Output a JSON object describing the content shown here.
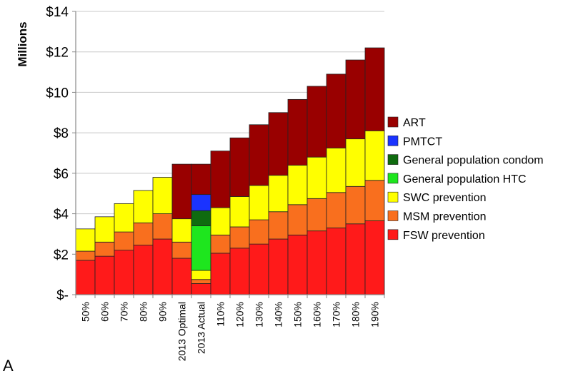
{
  "panel_label": "A",
  "chart_data": {
    "type": "bar",
    "stacked": true,
    "ylabel": "Millions",
    "ylim": [
      0,
      14
    ],
    "yticks": [
      0,
      2,
      4,
      6,
      8,
      10,
      12,
      14
    ],
    "ytick_labels": [
      "$-",
      "$2",
      "$4",
      "$6",
      "$8",
      "$10",
      "$12",
      "$14"
    ],
    "grid": true,
    "legend_position": "right",
    "categories": [
      "50%",
      "60%",
      "70%",
      "80%",
      "90%",
      "2013 Optimal",
      "2013 Actual",
      "110%",
      "120%",
      "130%",
      "140%",
      "150%",
      "160%",
      "170%",
      "180%",
      "190%"
    ],
    "series": [
      {
        "name": "FSW prevention",
        "color": "#ff1a1a",
        "values": [
          1.7,
          1.9,
          2.2,
          2.45,
          2.75,
          1.8,
          0.55,
          2.05,
          2.3,
          2.5,
          2.75,
          2.95,
          3.15,
          3.3,
          3.5,
          3.65
        ]
      },
      {
        "name": "MSM prevention",
        "color": "#f96f1e",
        "values": [
          0.45,
          0.7,
          0.9,
          1.1,
          1.25,
          0.8,
          0.2,
          0.9,
          1.05,
          1.2,
          1.35,
          1.5,
          1.6,
          1.75,
          1.85,
          2.0
        ]
      },
      {
        "name": "SWC prevention",
        "color": "#ffff00",
        "values": [
          1.1,
          1.25,
          1.4,
          1.6,
          1.8,
          1.15,
          0.45,
          1.35,
          1.5,
          1.7,
          1.8,
          1.95,
          2.05,
          2.2,
          2.35,
          2.45
        ]
      },
      {
        "name": "General population HTC",
        "color": "#1ee61e",
        "values": [
          0,
          0,
          0,
          0,
          0,
          0,
          2.2,
          0,
          0,
          0,
          0,
          0,
          0,
          0,
          0,
          0
        ]
      },
      {
        "name": "General population condom",
        "color": "#0f6b0f",
        "values": [
          0,
          0,
          0,
          0,
          0,
          0,
          0.75,
          0,
          0,
          0,
          0,
          0,
          0,
          0,
          0,
          0
        ]
      },
      {
        "name": "PMTCT",
        "color": "#1a33ff",
        "values": [
          0,
          0,
          0,
          0,
          0,
          0,
          0.8,
          0,
          0,
          0,
          0,
          0,
          0,
          0,
          0,
          0
        ]
      },
      {
        "name": "ART",
        "color": "#990000",
        "values": [
          0,
          0,
          0,
          0,
          0,
          2.7,
          1.5,
          2.8,
          2.9,
          3.0,
          3.1,
          3.25,
          3.5,
          3.65,
          3.9,
          4.1
        ]
      }
    ],
    "legend_order": [
      "ART",
      "PMTCT",
      "General population condom",
      "General population HTC",
      "SWC prevention",
      "MSM prevention",
      "FSW prevention"
    ]
  }
}
